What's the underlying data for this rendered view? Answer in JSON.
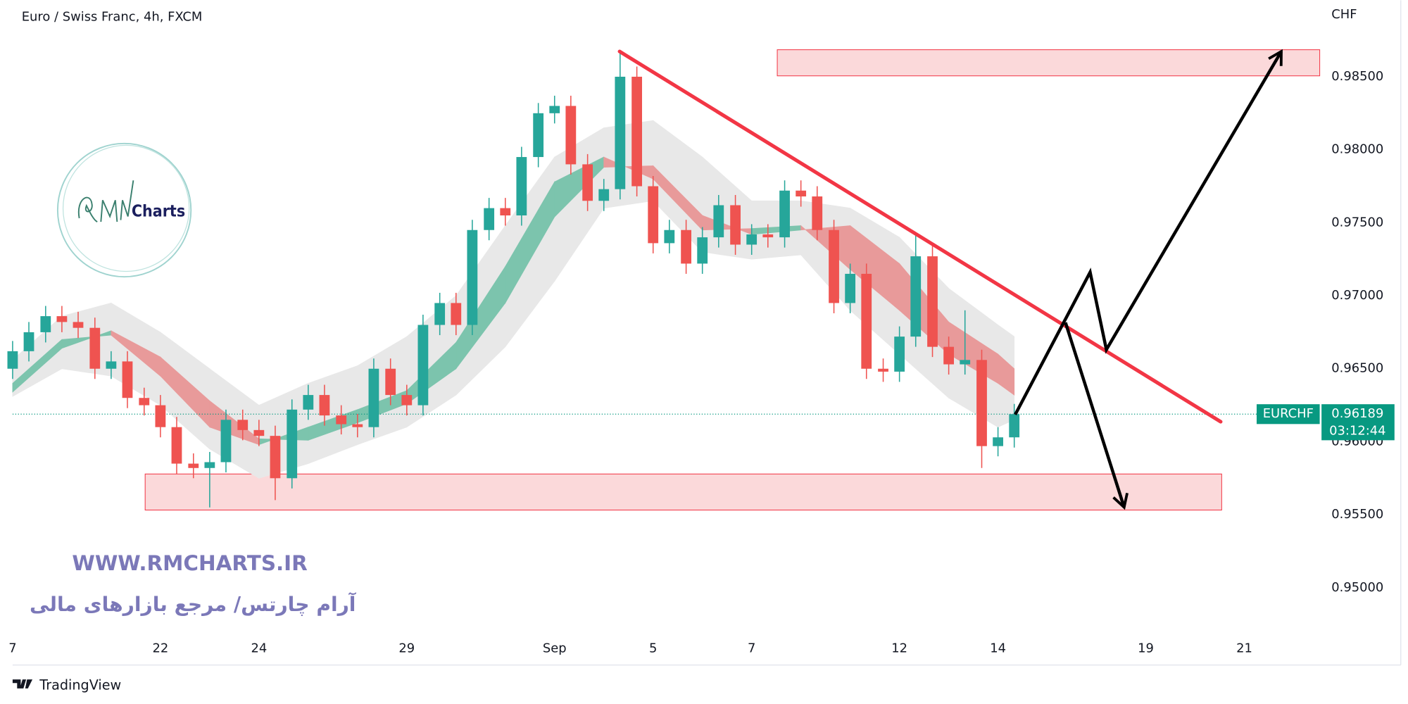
{
  "header": {
    "title": "Euro / Swiss Franc, 4h, FXCM"
  },
  "chart_data": {
    "type": "candlestick",
    "currency": "CHF",
    "up_color": "#26a69a",
    "down_color": "#ef5350",
    "x": [
      -3,
      -2.67,
      -2.33,
      -2,
      -1.67,
      -1.33,
      -1,
      -0.67,
      -0.33,
      0,
      0.33,
      0.67,
      1,
      1.33,
      1.67,
      2,
      2.33,
      2.67,
      3,
      3.33,
      3.67,
      4,
      4.33,
      4.67,
      5,
      5.33,
      5.67,
      6,
      6.33,
      6.67,
      7,
      7.33,
      7.67,
      8,
      8.33,
      8.67,
      9,
      9.33,
      9.67,
      10,
      10.33,
      10.67,
      11,
      11.33,
      11.67,
      12,
      12.33,
      12.67,
      13,
      13.33,
      13.67,
      14,
      14.33,
      14.67,
      15,
      15.33,
      15.67,
      16,
      16.33,
      16.67,
      17,
      17.33
    ],
    "open": [
      0.965,
      0.9662,
      0.9675,
      0.9686,
      0.9682,
      0.9678,
      0.965,
      0.9655,
      0.963,
      0.9625,
      0.961,
      0.9585,
      0.9582,
      0.9586,
      0.9615,
      0.9608,
      0.9604,
      0.9575,
      0.9622,
      0.9632,
      0.9618,
      0.9612,
      0.961,
      0.965,
      0.9632,
      0.9625,
      0.968,
      0.9695,
      0.968,
      0.9745,
      0.976,
      0.9755,
      0.9795,
      0.9825,
      0.983,
      0.979,
      0.9765,
      0.9773,
      0.985,
      0.9775,
      0.9736,
      0.9745,
      0.9722,
      0.974,
      0.9762,
      0.9735,
      0.9742,
      0.974,
      0.9772,
      0.9768,
      0.9745,
      0.9695,
      0.9715,
      0.965,
      0.9648,
      0.9672,
      0.9727,
      0.9665,
      0.9653,
      0.9656,
      0.9597,
      0.9603
    ],
    "high": [
      0.9669,
      0.9682,
      0.9693,
      0.9693,
      0.9689,
      0.9685,
      0.9662,
      0.9662,
      0.9637,
      0.9632,
      0.9617,
      0.9592,
      0.9593,
      0.9622,
      0.9622,
      0.9615,
      0.9611,
      0.9629,
      0.9639,
      0.9639,
      0.9625,
      0.9619,
      0.9657,
      0.9657,
      0.9639,
      0.9687,
      0.9702,
      0.9702,
      0.9752,
      0.9767,
      0.9767,
      0.9802,
      0.9832,
      0.9837,
      0.9837,
      0.9797,
      0.978,
      0.9868,
      0.9857,
      0.9782,
      0.9752,
      0.9752,
      0.9747,
      0.9769,
      0.9769,
      0.9749,
      0.9749,
      0.9779,
      0.9779,
      0.9775,
      0.9752,
      0.9722,
      0.9722,
      0.9657,
      0.9679,
      0.9743,
      0.9734,
      0.9672,
      0.969,
      0.9663,
      0.961,
      0.96259
    ],
    "low": [
      0.9643,
      0.9655,
      0.9668,
      0.9675,
      0.9671,
      0.9643,
      0.9643,
      0.9623,
      0.9618,
      0.9603,
      0.9578,
      0.9575,
      0.9555,
      0.9579,
      0.9601,
      0.9597,
      0.956,
      0.9568,
      0.9615,
      0.9611,
      0.9605,
      0.9603,
      0.9603,
      0.9625,
      0.9618,
      0.9618,
      0.9673,
      0.9673,
      0.9673,
      0.9738,
      0.9748,
      0.9748,
      0.9788,
      0.9818,
      0.9783,
      0.9758,
      0.9758,
      0.9766,
      0.9768,
      0.9729,
      0.9729,
      0.9715,
      0.9715,
      0.9733,
      0.9728,
      0.9728,
      0.9733,
      0.9733,
      0.9761,
      0.9738,
      0.9688,
      0.9688,
      0.9643,
      0.9641,
      0.9641,
      0.9665,
      0.9658,
      0.9646,
      0.9646,
      0.9582,
      0.959,
      0.9596
    ],
    "close": [
      0.9662,
      0.9675,
      0.9686,
      0.9682,
      0.9678,
      0.965,
      0.9655,
      0.963,
      0.9625,
      0.961,
      0.9585,
      0.9582,
      0.9586,
      0.9615,
      0.9608,
      0.9604,
      0.9575,
      0.9622,
      0.9632,
      0.9618,
      0.9612,
      0.961,
      0.965,
      0.9632,
      0.9625,
      0.968,
      0.9695,
      0.968,
      0.9745,
      0.976,
      0.9755,
      0.9795,
      0.9825,
      0.983,
      0.979,
      0.9765,
      0.9773,
      0.985,
      0.9775,
      0.9736,
      0.9745,
      0.9722,
      0.974,
      0.9762,
      0.9735,
      0.9742,
      0.974,
      0.9772,
      0.9768,
      0.9745,
      0.9695,
      0.9715,
      0.965,
      0.9648,
      0.9672,
      0.9727,
      0.9665,
      0.9653,
      0.9656,
      0.9597,
      0.9603,
      0.96189
    ],
    "xlim": [
      -3,
      23.53
    ],
    "xticks": [
      {
        "value": -3,
        "label": "7"
      },
      {
        "value": 0,
        "label": "22"
      },
      {
        "value": 2,
        "label": "24"
      },
      {
        "value": 5,
        "label": "29"
      },
      {
        "value": 8,
        "label": "Sep"
      },
      {
        "value": 10,
        "label": "5"
      },
      {
        "value": 12,
        "label": "7"
      },
      {
        "value": 15,
        "label": "12"
      },
      {
        "value": 17,
        "label": "14"
      },
      {
        "value": 20,
        "label": "19"
      },
      {
        "value": 22,
        "label": "21"
      }
    ],
    "ylim": [
      0.94674,
      0.99024
    ],
    "yticks": [
      {
        "value": 0.985,
        "label": "0.98500"
      },
      {
        "value": 0.98,
        "label": "0.98000"
      },
      {
        "value": 0.975,
        "label": "0.97500"
      },
      {
        "value": 0.97,
        "label": "0.97000"
      },
      {
        "value": 0.965,
        "label": "0.96500"
      },
      {
        "value": 0.96,
        "label": "0.96000"
      },
      {
        "value": 0.955,
        "label": "0.95500"
      },
      {
        "value": 0.95,
        "label": "0.95000"
      }
    ],
    "ribbon": {
      "up_color": "#7cc4ad",
      "down_color": "#e89a9a",
      "band_color": "#e8e8e8",
      "x": [
        -3,
        -2,
        -1,
        0,
        1,
        2,
        3,
        4,
        5,
        6,
        7,
        8,
        9,
        10,
        11,
        12,
        13,
        14,
        15,
        16,
        17,
        17.33
      ],
      "fast": [
        0.964,
        0.967,
        0.9673,
        0.9645,
        0.961,
        0.9598,
        0.961,
        0.9622,
        0.9635,
        0.9668,
        0.972,
        0.9778,
        0.9795,
        0.978,
        0.9745,
        0.9746,
        0.9748,
        0.9718,
        0.969,
        0.966,
        0.964,
        0.9632
      ],
      "slow": [
        0.9634,
        0.9664,
        0.9676,
        0.9658,
        0.9628,
        0.9602,
        0.9601,
        0.9613,
        0.9626,
        0.965,
        0.9695,
        0.9754,
        0.9788,
        0.9789,
        0.9755,
        0.9742,
        0.9745,
        0.9748,
        0.9722,
        0.9682,
        0.966,
        0.965
      ],
      "upper": [
        0.9656,
        0.9686,
        0.9695,
        0.9675,
        0.965,
        0.9625,
        0.964,
        0.9652,
        0.9672,
        0.97,
        0.9748,
        0.9795,
        0.9815,
        0.982,
        0.9795,
        0.9765,
        0.9765,
        0.976,
        0.974,
        0.9705,
        0.968,
        0.9672
      ],
      "lower": [
        0.9631,
        0.965,
        0.9645,
        0.9625,
        0.9595,
        0.9575,
        0.9585,
        0.9598,
        0.961,
        0.9632,
        0.9665,
        0.971,
        0.976,
        0.9765,
        0.973,
        0.9725,
        0.9728,
        0.969,
        0.966,
        0.963,
        0.961,
        0.9615
      ]
    },
    "zones": [
      {
        "x": [
          12.52,
          23.53
        ],
        "y": [
          0.98506,
          0.98685
        ],
        "color": "#fbd9da"
      },
      {
        "x": [
          -0.31,
          21.54
        ],
        "y": [
          0.95532,
          0.95779
        ],
        "color": "#fbd9da"
      }
    ],
    "trendline": {
      "x": [
        9.32,
        21.52
      ],
      "y": [
        0.98673,
        0.96137
      ],
      "color": "#f23645"
    },
    "arrows": [
      {
        "x": [
          17.35,
          18.87,
          19.2,
          22.75
        ],
        "y": [
          0.96186,
          0.97161,
          0.96631,
          0.98673
        ]
      },
      {
        "x": [
          18.37,
          19.56
        ],
        "y": [
          0.96816,
          0.95551
        ]
      }
    ],
    "last_price": {
      "symbol": "EURCHF",
      "value": 0.96189,
      "label": "0.96189",
      "countdown": "03:12:44",
      "color": "#089981"
    }
  },
  "watermark": {
    "logo": "Charts",
    "url": "WWW.RMCHARTS.IR",
    "tagline": "آرام چارتس/ مرجع بازارهای مالی"
  },
  "footer": {
    "brand": "TradingView"
  }
}
